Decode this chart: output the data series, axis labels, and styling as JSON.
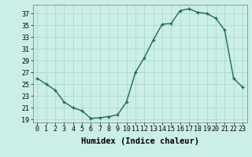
{
  "x": [
    0,
    1,
    2,
    3,
    4,
    5,
    6,
    7,
    8,
    9,
    10,
    11,
    12,
    13,
    14,
    15,
    16,
    17,
    18,
    19,
    20,
    21,
    22,
    23
  ],
  "y": [
    26,
    25,
    24,
    22,
    21,
    20.5,
    19.2,
    19.3,
    19.5,
    19.8,
    22,
    27,
    29.5,
    32.5,
    35.2,
    35.3,
    37.5,
    37.8,
    37.2,
    37.0,
    36.2,
    34.2,
    26.0,
    24.5
  ],
  "xlabel": "Humidex (Indice chaleur)",
  "line_color": "#1a6b5a",
  "marker": "+",
  "bg_color": "#cceee8",
  "grid_color": "#aad8d0",
  "ylim": [
    18.5,
    38.5
  ],
  "xlim": [
    -0.5,
    23.5
  ],
  "yticks": [
    19,
    21,
    23,
    25,
    27,
    29,
    31,
    33,
    35,
    37
  ],
  "xticks": [
    0,
    1,
    2,
    3,
    4,
    5,
    6,
    7,
    8,
    9,
    10,
    11,
    12,
    13,
    14,
    15,
    16,
    17,
    18,
    19,
    20,
    21,
    22,
    23
  ],
  "tick_fontsize": 6,
  "xlabel_fontsize": 7.5,
  "markersize": 3,
  "linewidth": 1.0
}
